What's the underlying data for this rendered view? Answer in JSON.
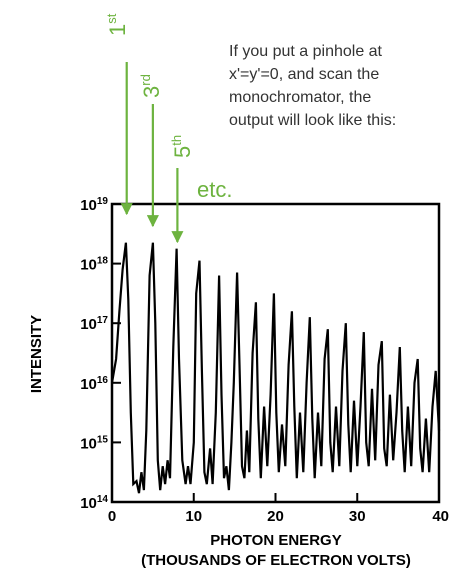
{
  "caption": {
    "lines": [
      "If you put a pinhole at",
      "x'=y'=0, and scan the",
      "monochromator, the",
      "output will look like this:"
    ]
  },
  "colors": {
    "accent": "#6db33f",
    "line": "#000000",
    "caption_text": "#333333"
  },
  "annotations": [
    {
      "base": "1",
      "sup": "st",
      "x_data": 1.8
    },
    {
      "base": "3",
      "sup": "rd",
      "x_data": 5.0
    },
    {
      "base": "5",
      "sup": "th",
      "x_data": 8.0
    },
    {
      "text": "etc.",
      "x_data": 9.6
    }
  ],
  "chart_data": {
    "type": "line",
    "xlabel_lines": [
      "PHOTON ENERGY",
      "(THOUSANDS OF ELECTRON VOLTS)"
    ],
    "ylabel": "INTENSITY",
    "xlim": [
      0,
      40
    ],
    "ylim_exp": [
      14,
      19
    ],
    "x_ticks": [
      {
        "value": 0,
        "label": "0"
      },
      {
        "value": 10,
        "label": "10"
      },
      {
        "value": 20,
        "label": "20"
      },
      {
        "value": 30,
        "label": "30"
      },
      {
        "value": 40,
        "label": "40"
      }
    ],
    "y_ticks": [
      {
        "exp": 19,
        "base": "10",
        "sup": "19"
      },
      {
        "exp": 18,
        "base": "10",
        "sup": "18"
      },
      {
        "exp": 17,
        "base": "10",
        "sup": "17"
      },
      {
        "exp": 16,
        "base": "10",
        "sup": "16"
      },
      {
        "exp": 15,
        "base": "10",
        "sup": "15"
      },
      {
        "exp": 14,
        "base": "10",
        "sup": "14"
      }
    ],
    "log_scale_y": true,
    "series": [
      {
        "points": [
          [
            0.0,
            16.0
          ],
          [
            0.5,
            16.4
          ],
          [
            0.9,
            17.2
          ],
          [
            1.3,
            17.9
          ],
          [
            1.7,
            18.35
          ],
          [
            2.0,
            17.4
          ],
          [
            2.3,
            15.5
          ],
          [
            2.6,
            14.3
          ],
          [
            3.0,
            14.35
          ],
          [
            3.3,
            14.15
          ],
          [
            3.6,
            14.5
          ],
          [
            3.9,
            14.2
          ],
          [
            4.2,
            15.2
          ],
          [
            4.6,
            17.8
          ],
          [
            5.0,
            18.35
          ],
          [
            5.3,
            17.0
          ],
          [
            5.6,
            14.7
          ],
          [
            5.9,
            14.2
          ],
          [
            6.2,
            14.6
          ],
          [
            6.5,
            14.3
          ],
          [
            6.8,
            14.7
          ],
          [
            7.1,
            14.4
          ],
          [
            7.5,
            16.6
          ],
          [
            7.9,
            18.25
          ],
          [
            8.2,
            16.4
          ],
          [
            8.6,
            14.7
          ],
          [
            9.0,
            14.3
          ],
          [
            9.3,
            14.6
          ],
          [
            9.6,
            14.3
          ],
          [
            10.0,
            15.0
          ],
          [
            10.3,
            17.5
          ],
          [
            10.7,
            18.05
          ],
          [
            11.0,
            16.2
          ],
          [
            11.3,
            14.5
          ],
          [
            11.6,
            14.3
          ],
          [
            12.0,
            14.9
          ],
          [
            12.3,
            14.3
          ],
          [
            12.7,
            15.5
          ],
          [
            13.1,
            17.8
          ],
          [
            13.4,
            15.8
          ],
          [
            13.7,
            14.4
          ],
          [
            14.0,
            14.6
          ],
          [
            14.3,
            14.2
          ],
          [
            14.6,
            15.0
          ],
          [
            14.9,
            16.0
          ],
          [
            15.3,
            17.85
          ],
          [
            15.6,
            16.3
          ],
          [
            15.9,
            14.6
          ],
          [
            16.2,
            14.4
          ],
          [
            16.5,
            15.2
          ],
          [
            16.8,
            14.5
          ],
          [
            17.2,
            16.5
          ],
          [
            17.6,
            17.35
          ],
          [
            17.9,
            15.4
          ],
          [
            18.2,
            14.4
          ],
          [
            18.6,
            15.6
          ],
          [
            19.0,
            14.6
          ],
          [
            19.4,
            15.8
          ],
          [
            19.8,
            17.5
          ],
          [
            20.1,
            15.5
          ],
          [
            20.4,
            14.5
          ],
          [
            20.8,
            15.3
          ],
          [
            21.2,
            14.6
          ],
          [
            21.6,
            16.3
          ],
          [
            22.0,
            17.2
          ],
          [
            22.3,
            15.6
          ],
          [
            22.6,
            14.4
          ],
          [
            23.0,
            15.5
          ],
          [
            23.4,
            14.5
          ],
          [
            23.8,
            16.0
          ],
          [
            24.2,
            17.1
          ],
          [
            24.5,
            15.4
          ],
          [
            24.8,
            14.4
          ],
          [
            25.2,
            15.5
          ],
          [
            25.6,
            14.6
          ],
          [
            26.0,
            16.4
          ],
          [
            26.4,
            16.9
          ],
          [
            26.7,
            15.0
          ],
          [
            27.0,
            14.5
          ],
          [
            27.4,
            15.6
          ],
          [
            27.8,
            14.6
          ],
          [
            28.2,
            16.2
          ],
          [
            28.6,
            17.0
          ],
          [
            28.9,
            15.3
          ],
          [
            29.2,
            14.5
          ],
          [
            29.6,
            15.7
          ],
          [
            30.0,
            14.6
          ],
          [
            30.4,
            15.6
          ],
          [
            30.8,
            16.85
          ],
          [
            31.1,
            15.0
          ],
          [
            31.4,
            14.6
          ],
          [
            31.8,
            15.9
          ],
          [
            32.2,
            14.7
          ],
          [
            32.6,
            16.3
          ],
          [
            33.0,
            16.7
          ],
          [
            33.3,
            14.9
          ],
          [
            33.6,
            14.6
          ],
          [
            34.0,
            15.8
          ],
          [
            34.4,
            14.7
          ],
          [
            34.8,
            15.5
          ],
          [
            35.2,
            16.6
          ],
          [
            35.5,
            15.2
          ],
          [
            35.8,
            14.5
          ],
          [
            36.2,
            15.6
          ],
          [
            36.6,
            14.6
          ],
          [
            37.0,
            16.0
          ],
          [
            37.4,
            16.4
          ],
          [
            37.7,
            14.9
          ],
          [
            38.0,
            14.5
          ],
          [
            38.4,
            15.4
          ],
          [
            38.8,
            14.5
          ],
          [
            39.2,
            15.6
          ],
          [
            39.6,
            16.2
          ],
          [
            40.0,
            15.2
          ]
        ]
      }
    ]
  }
}
